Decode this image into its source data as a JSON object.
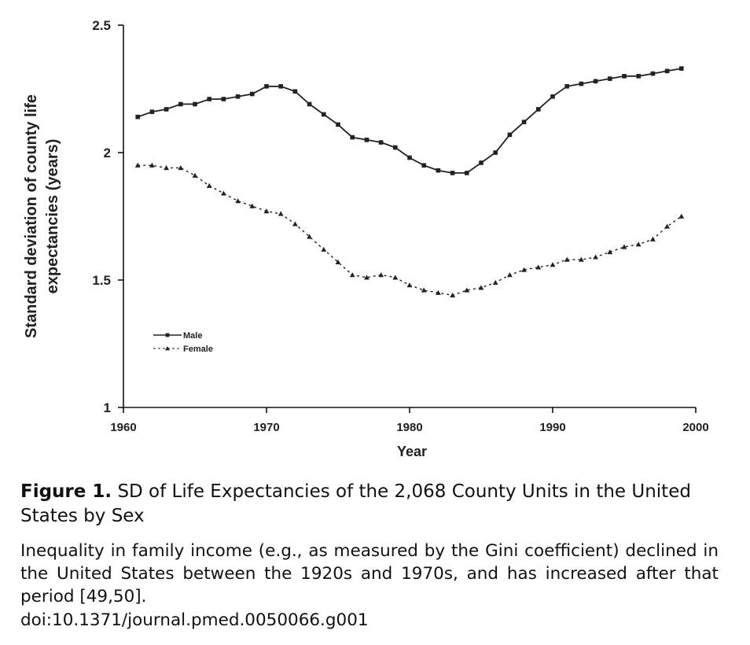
{
  "chart_data": {
    "type": "line",
    "xlabel": "Year",
    "ylabel": "Standard deviation of county life expectancies (years)",
    "ylabel_lines": [
      "Standard deviation of county life",
      "expectancies (years)"
    ],
    "xlim": [
      1960,
      2000
    ],
    "ylim": [
      1,
      2.5
    ],
    "xticks": [
      1960,
      1970,
      1980,
      1990,
      2000
    ],
    "yticks": [
      "1",
      "1.5",
      "2",
      "2.5"
    ],
    "ytick_values": [
      1,
      1.5,
      2,
      2.5
    ],
    "grid": false,
    "legend_position": "lower-left",
    "x": [
      1961,
      1962,
      1963,
      1964,
      1965,
      1966,
      1967,
      1968,
      1969,
      1970,
      1971,
      1972,
      1973,
      1974,
      1975,
      1976,
      1977,
      1978,
      1979,
      1980,
      1981,
      1982,
      1983,
      1984,
      1985,
      1986,
      1987,
      1988,
      1989,
      1990,
      1991,
      1992,
      1993,
      1994,
      1995,
      1996,
      1997,
      1998,
      1999
    ],
    "series": [
      {
        "name": "Male",
        "style": "solid",
        "marker": "square",
        "color": "#222222",
        "values": [
          2.14,
          2.16,
          2.17,
          2.19,
          2.19,
          2.21,
          2.21,
          2.22,
          2.23,
          2.26,
          2.26,
          2.24,
          2.19,
          2.15,
          2.11,
          2.06,
          2.05,
          2.04,
          2.02,
          1.98,
          1.95,
          1.93,
          1.92,
          1.92,
          1.96,
          2.0,
          2.07,
          2.12,
          2.17,
          2.22,
          2.26,
          2.27,
          2.28,
          2.29,
          2.3,
          2.3,
          2.31,
          2.32,
          2.33
        ]
      },
      {
        "name": "Female",
        "style": "dashed",
        "marker": "triangle",
        "color": "#222222",
        "values": [
          1.95,
          1.95,
          1.94,
          1.94,
          1.91,
          1.87,
          1.84,
          1.81,
          1.79,
          1.77,
          1.76,
          1.72,
          1.67,
          1.62,
          1.57,
          1.52,
          1.51,
          1.52,
          1.51,
          1.48,
          1.46,
          1.45,
          1.44,
          1.46,
          1.47,
          1.49,
          1.52,
          1.54,
          1.55,
          1.56,
          1.58,
          1.58,
          1.59,
          1.61,
          1.63,
          1.64,
          1.66,
          1.71,
          1.75
        ]
      }
    ]
  },
  "caption": {
    "figure_label": "Figure 1.",
    "title": "SD of Life Expectancies of the 2,068 County Units in the United States by Sex",
    "body": "Inequality in family income (e.g., as measured by the Gini coefficient) declined in the United States between the 1920s and 1970s, and has increased after that period [49,50].",
    "doi": "doi:10.1371/journal.pmed.0050066.g001"
  }
}
